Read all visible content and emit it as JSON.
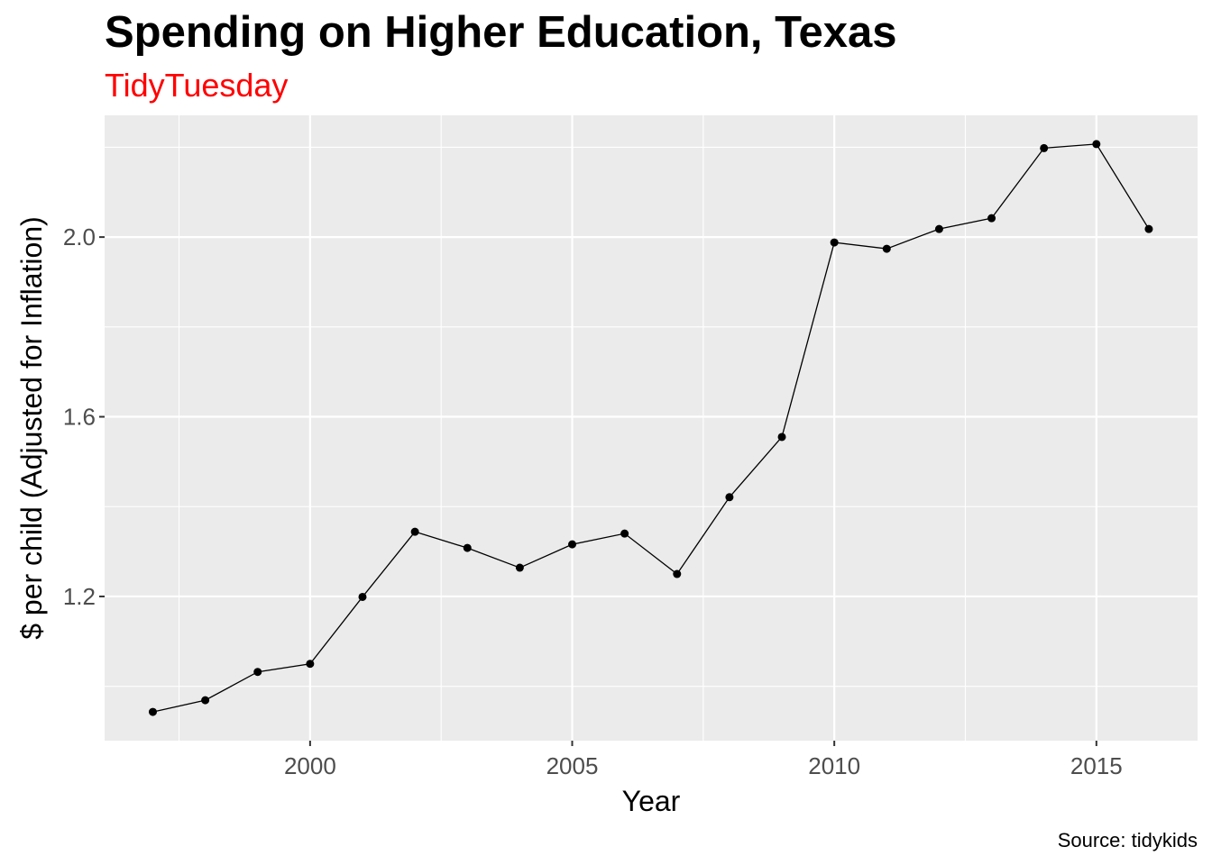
{
  "chart_data": {
    "type": "line",
    "title": "Spending on Higher Education, Texas",
    "subtitle": "TidyTuesday",
    "caption": "Source: tidykids",
    "xlabel": "Year",
    "ylabel": "$ per child (Adjusted for Inflation)",
    "x": [
      1997,
      1998,
      1999,
      2000,
      2001,
      2002,
      2003,
      2004,
      2005,
      2006,
      2007,
      2008,
      2009,
      2010,
      2011,
      2012,
      2013,
      2014,
      2015,
      2016
    ],
    "values": [
      0.943,
      0.969,
      1.032,
      1.05,
      1.199,
      1.344,
      1.308,
      1.264,
      1.316,
      1.34,
      1.25,
      1.421,
      1.555,
      1.988,
      1.974,
      2.018,
      2.042,
      2.198,
      2.207,
      2.018
    ],
    "xlim": [
      1996.08,
      2016.93
    ],
    "ylim": [
      0.879,
      2.271
    ],
    "xticks": [
      "2000",
      "2005",
      "2010",
      "2015"
    ],
    "yticks": [
      "1.2",
      "1.6",
      "2.0"
    ],
    "grid": true,
    "colors": {
      "panel": "#EBEBEB",
      "grid": "#FFFFFF",
      "line": "#000000",
      "subtitle": "#FF0000",
      "tick_label": "#4D4D4D"
    }
  }
}
